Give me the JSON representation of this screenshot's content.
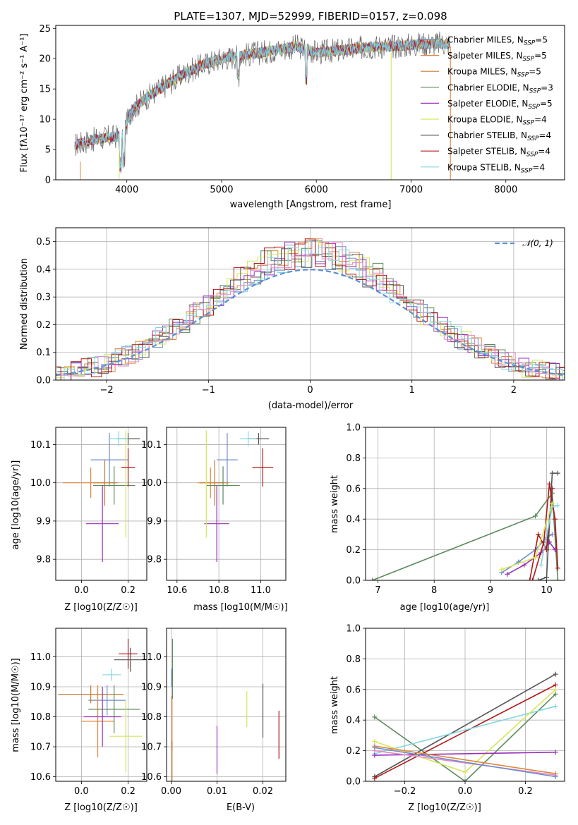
{
  "chart_data": [
    {
      "id": "spectrum",
      "type": "line",
      "title": "PLATE=1307, MJD=52999, FIBERID=0157, z=0.098",
      "xlabel": "wavelength [Angstrom, rest frame]",
      "ylabel": "Flux [f$_\\lambda$10$^{-17}$ erg cm$^{-2}$ s$^{-1}$ A$^{-1}$]",
      "ylabel_display": "Flux [fλ10⁻¹⁷ erg cm⁻² s⁻¹ A⁻¹]",
      "xlim": [
        3250,
        8620
      ],
      "ylim": [
        0,
        25.5
      ],
      "xticks": [
        4000,
        5000,
        6000,
        7000,
        8000
      ],
      "yticks": [
        0,
        5,
        10,
        15,
        20,
        25
      ],
      "legend_position": "upper right",
      "legend": [
        "Chabrier MILES, N_SSP=5",
        "Salpeter MILES, N_SSP=5",
        "Kroupa MILES, N_SSP=5",
        "Chabrier ELODIE, N_SSP=3",
        "Salpeter ELODIE, N_SSP=5",
        "Kroupa ELODIE, N_SSP=4",
        "Chabrier STELIB, N_SSP=4",
        "Salpeter STELIB, N_SSP=4",
        "Kroupa STELIB, N_SSP=4"
      ],
      "data_trend": {
        "x": [
          3450,
          3600,
          3800,
          3950,
          4050,
          4200,
          4400,
          4600,
          4800,
          5000,
          5200,
          5400,
          5600,
          5800,
          6000,
          6200,
          6400,
          6600,
          6800,
          7000,
          7200,
          7400
        ],
        "y": [
          5.7,
          6.5,
          7.0,
          7.3,
          11.5,
          13.5,
          15.5,
          17.5,
          19.0,
          20.0,
          20.5,
          21.0,
          21.5,
          22.0,
          21.0,
          21.3,
          21.6,
          22.0,
          22.0,
          22.3,
          22.5,
          22.5
        ]
      }
    },
    {
      "id": "residuals",
      "type": "histogram",
      "xlabel": "(data-model)/error",
      "ylabel": "Normed distribution",
      "xlim": [
        -2.5,
        2.5
      ],
      "ylim": [
        0,
        0.55
      ],
      "xticks": [
        -2,
        -1,
        0,
        1,
        2
      ],
      "yticks": [
        0.0,
        0.1,
        0.2,
        0.3,
        0.4,
        0.5
      ],
      "legend_position": "upper right",
      "reference": {
        "name": "N(0,1)",
        "mean": 0,
        "sigma": 1
      }
    },
    {
      "id": "age_vs_Z",
      "type": "errorbar",
      "xlabel": "Z [log10(Z/Z☉)]",
      "ylabel": "age  [log10(age/yr)]",
      "xlim": [
        -0.11,
        0.28
      ],
      "ylim": [
        9.745,
        10.145
      ],
      "xticks": [
        0.0,
        0.2
      ],
      "yticks": [
        9.8,
        9.9,
        10.0,
        10.1
      ],
      "points": [
        {
          "x": 0.12,
          "y": 10.06,
          "xerr": 0.08,
          "yerr": 0.07
        },
        {
          "x": 0.04,
          "y": 10.0,
          "xerr": 0.12,
          "yerr": 0.04
        },
        {
          "x": 0.1,
          "y": 10.0,
          "xerr": 0.05,
          "yerr": 0.06
        },
        {
          "x": 0.14,
          "y": 9.993,
          "xerr": 0.09,
          "yerr": 0.05
        },
        {
          "x": 0.09,
          "y": 9.893,
          "xerr": 0.07,
          "yerr": 0.1
        },
        {
          "x": 0.19,
          "y": 9.997,
          "xerr": 0.0,
          "yerr": 0.14
        },
        {
          "x": 0.2,
          "y": 10.115,
          "xerr": 0.05,
          "yerr": 0.015
        },
        {
          "x": 0.2,
          "y": 10.04,
          "xerr": 0.03,
          "yerr": 0.05
        },
        {
          "x": 0.16,
          "y": 10.115,
          "xerr": 0.04,
          "yerr": 0.02
        }
      ]
    },
    {
      "id": "age_vs_mass",
      "type": "errorbar",
      "xlabel": "mass [log10(M/M☉)]",
      "ylabel": "",
      "xlim": [
        10.55,
        11.12
      ],
      "ylim": [
        9.745,
        10.145
      ],
      "xticks": [
        10.6,
        10.8,
        11.0
      ],
      "yticks": [
        9.8,
        9.9,
        10.0,
        10.1
      ],
      "points": [
        {
          "x": 10.84,
          "y": 10.06,
          "xerr": 0.05,
          "yerr": 0.07
        },
        {
          "x": 10.76,
          "y": 10.0,
          "xerr": 0.06,
          "yerr": 0.04
        },
        {
          "x": 10.78,
          "y": 10.0,
          "xerr": 0.07,
          "yerr": 0.06
        },
        {
          "x": 10.82,
          "y": 9.993,
          "xerr": 0.08,
          "yerr": 0.05
        },
        {
          "x": 10.79,
          "y": 9.893,
          "xerr": 0.06,
          "yerr": 0.1
        },
        {
          "x": 10.74,
          "y": 9.997,
          "xerr": 0.0,
          "yerr": 0.14
        },
        {
          "x": 10.99,
          "y": 10.115,
          "xerr": 0.05,
          "yerr": 0.015
        },
        {
          "x": 11.01,
          "y": 10.04,
          "xerr": 0.05,
          "yerr": 0.05
        },
        {
          "x": 10.94,
          "y": 10.115,
          "xerr": 0.04,
          "yerr": 0.02
        }
      ]
    },
    {
      "id": "weight_vs_age",
      "type": "line",
      "xlabel": "age  [log10(age/yr)]",
      "ylabel": "mass weight",
      "xlim": [
        6.78,
        10.32
      ],
      "ylim": [
        0,
        1.0
      ],
      "xticks": [
        7,
        8,
        9,
        10
      ],
      "yticks": [
        0.0,
        0.2,
        0.4,
        0.6,
        0.8,
        1.0
      ],
      "series": [
        {
          "x": [
            6.9,
            9.8,
            10.1,
            10.2
          ],
          "y": [
            0.0,
            0.42,
            0.57,
            0.0
          ]
        },
        {
          "x": [
            9.2,
            9.5,
            9.8,
            10.0,
            10.1
          ],
          "y": [
            0.05,
            0.12,
            0.2,
            0.28,
            0.3
          ]
        },
        {
          "x": [
            9.3,
            9.6,
            9.9,
            10.05,
            10.15
          ],
          "y": [
            0.04,
            0.1,
            0.18,
            0.25,
            0.2
          ]
        },
        {
          "x": [
            9.7,
            9.85,
            10.0,
            10.1
          ],
          "y": [
            0.0,
            0.3,
            0.2,
            0.6
          ]
        },
        {
          "x": [
            9.85,
            10.0,
            10.1,
            10.2
          ],
          "y": [
            0.0,
            0.02,
            0.7,
            0.7
          ]
        },
        {
          "x": [
            9.75,
            9.95,
            10.05,
            10.15,
            10.2
          ],
          "y": [
            0.0,
            0.25,
            0.63,
            0.4,
            0.08
          ]
        },
        {
          "x": [
            9.9,
            10.1,
            10.2
          ],
          "y": [
            0.1,
            0.48,
            0.49
          ]
        },
        {
          "x": [
            9.2,
            9.8,
            10.1
          ],
          "y": [
            0.07,
            0.15,
            0.5
          ]
        }
      ]
    },
    {
      "id": "mass_vs_Z",
      "type": "errorbar",
      "xlabel": "Z [log10(Z/Z☉)]",
      "ylabel": "mass [log10(M/M☉)]",
      "xlim": [
        -0.11,
        0.28
      ],
      "ylim": [
        10.585,
        11.095
      ],
      "xticks": [
        0.0,
        0.2
      ],
      "yticks": [
        10.6,
        10.7,
        10.8,
        10.9,
        11.0
      ],
      "points": [
        {
          "x": 0.11,
          "y": 10.855,
          "xerr": 0.08,
          "yerr": 0.05
        },
        {
          "x": 0.07,
          "y": 10.785,
          "xerr": 0.07,
          "yerr": 0.12
        },
        {
          "x": 0.04,
          "y": 10.875,
          "xerr": 0.14,
          "yerr": 0.03
        },
        {
          "x": 0.14,
          "y": 10.825,
          "xerr": 0.11,
          "yerr": 0.08
        },
        {
          "x": 0.09,
          "y": 10.8,
          "xerr": 0.08,
          "yerr": 0.1
        },
        {
          "x": 0.19,
          "y": 10.735,
          "xerr": 0.07,
          "yerr": 0.12
        },
        {
          "x": 0.21,
          "y": 10.99,
          "xerr": 0.07,
          "yerr": 0.04
        },
        {
          "x": 0.2,
          "y": 11.01,
          "xerr": 0.04,
          "yerr": 0.05
        },
        {
          "x": 0.13,
          "y": 10.94,
          "xerr": 0.04,
          "yerr": 0.02
        }
      ]
    },
    {
      "id": "mass_vs_EBV",
      "type": "errorbar",
      "xlabel": "E(B-V)",
      "ylabel": "",
      "xlim": [
        -0.001,
        0.025
      ],
      "ylim": [
        10.585,
        11.095
      ],
      "xticks": [
        0.0,
        0.01,
        0.02
      ],
      "yticks": [
        10.6,
        10.7,
        10.8,
        10.9,
        11.0
      ],
      "points": [
        {
          "x": 0.0001,
          "y": 10.93,
          "yerr": 0.03
        },
        {
          "x": 0.0002,
          "y": 10.78,
          "yerr": 0.09
        },
        {
          "x": 0.0002,
          "y": 10.65,
          "yerr": 0.07
        },
        {
          "x": 0.0003,
          "y": 10.96,
          "yerr": 0.1
        },
        {
          "x": 0.01,
          "y": 10.69,
          "yerr": 0.08
        },
        {
          "x": 0.0165,
          "y": 10.825,
          "yerr": 0.06
        },
        {
          "x": 0.02,
          "y": 10.82,
          "yerr": 0.09
        },
        {
          "x": 0.0235,
          "y": 10.74,
          "yerr": 0.08
        }
      ]
    },
    {
      "id": "weight_vs_Z",
      "type": "line",
      "xlabel": "Z [log10(Z/Z☉)]",
      "ylabel": "mass weight",
      "xlim": [
        -0.33,
        0.33
      ],
      "ylim": [
        0,
        1.0
      ],
      "xticks": [
        -0.2,
        0.0,
        0.2
      ],
      "yticks": [
        0.0,
        0.2,
        0.4,
        0.6,
        0.8,
        1.0
      ],
      "series": [
        {
          "x": [
            -0.3,
            0.0,
            0.3
          ],
          "y": [
            0.42,
            0.0,
            0.57
          ]
        },
        {
          "x": [
            -0.3,
            0.3
          ],
          "y": [
            0.03,
            0.7
          ]
        },
        {
          "x": [
            -0.3,
            0.3
          ],
          "y": [
            0.02,
            0.63
          ]
        },
        {
          "x": [
            -0.3,
            0.3
          ],
          "y": [
            0.18,
            0.49
          ]
        },
        {
          "x": [
            -0.3,
            0.0,
            0.3
          ],
          "y": [
            0.26,
            0.06,
            0.6
          ]
        },
        {
          "x": [
            -0.3,
            0.3
          ],
          "y": [
            0.17,
            0.19
          ]
        },
        {
          "x": [
            -0.3,
            0.3
          ],
          "y": [
            0.2,
            0.04
          ]
        },
        {
          "x": [
            -0.3,
            0.3
          ],
          "y": [
            0.23,
            0.05
          ]
        },
        {
          "x": [
            -0.3,
            0.3
          ],
          "y": [
            0.22,
            0.03
          ]
        }
      ]
    }
  ],
  "colors": [
    "#6f8fca",
    "#e0853d",
    "#c97a30",
    "#5b8a5c",
    "#9b30b8",
    "#d6e65a",
    "#555555",
    "#b01818",
    "#80d6e0",
    "#e889c4"
  ]
}
